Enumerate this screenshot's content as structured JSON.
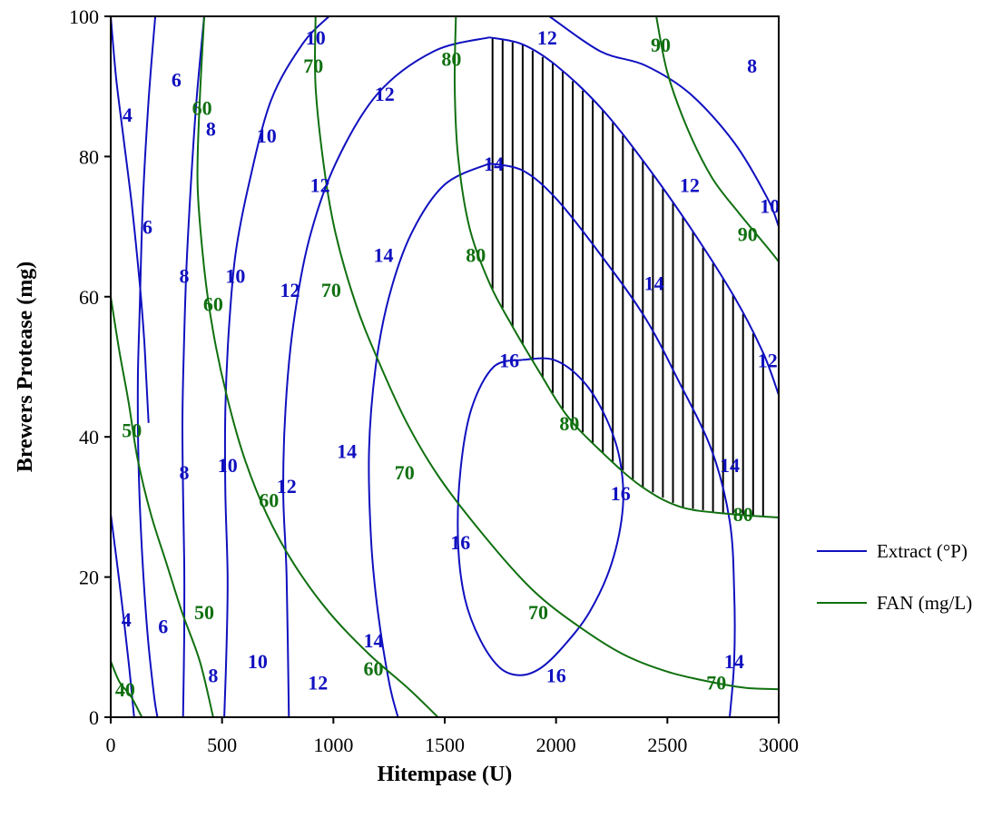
{
  "chart_data": {
    "type": "contour",
    "xlabel": "Hitempase (U)",
    "ylabel": "Brewers Protease (mg)",
    "xlim": [
      0,
      3000
    ],
    "ylim": [
      0,
      100
    ],
    "x_ticks": [
      "0",
      "500",
      "1000",
      "1500",
      "2000",
      "2500",
      "3000"
    ],
    "y_ticks": [
      "0",
      "20",
      "40",
      "60",
      "80",
      "100"
    ],
    "legend_position": "right",
    "shaded_region": "optimum region where Extract >= 12 and FAN >= 80 (hatched)",
    "series": [
      {
        "name": "Extract (°P)",
        "color": "#1010c0",
        "levels": [
          {
            "level": 4,
            "lines": [
              [
                [
                  0,
                  29
                ],
                [
                  40,
                  19
                ],
                [
                  80,
                  8
                ],
                [
                  105,
                  0
                ]
              ],
              [
                [
                  0,
                  100
                ],
                [
                  25,
                  91
                ],
                [
                  60,
                  82
                ],
                [
                  95,
                  73
                ],
                [
                  130,
                  62
                ],
                [
                  150,
                  54
                ],
                [
                  160,
                  48
                ],
                [
                  170,
                  42
                ]
              ]
            ]
          },
          {
            "level": 6,
            "lines": [
              [
                [
                  200,
                  100
                ],
                [
                  170,
                  88
                ],
                [
                  145,
                  74
                ],
                [
                  130,
                  58
                ],
                [
                  122,
                  48
                ],
                [
                  125,
                  36
                ],
                [
                  140,
                  24
                ],
                [
                  165,
                  12
                ],
                [
                  195,
                  3
                ],
                [
                  210,
                  0
                ]
              ]
            ]
          },
          {
            "level": 8,
            "lines": [
              [
                [
                  420,
                  100
                ],
                [
                  385,
                  88
                ],
                [
                  360,
                  76
                ],
                [
                  340,
                  64
                ],
                [
                  328,
                  52
                ],
                [
                  322,
                  42
                ],
                [
                  325,
                  32
                ],
                [
                  330,
                  22
                ],
                [
                  330,
                  12
                ],
                [
                  325,
                  0
                ]
              ]
            ]
          },
          {
            "level": 10,
            "lines": [
              [
                [
                  980,
                  100
                ],
                [
                  860,
                  96
                ],
                [
                  720,
                  88
                ],
                [
                  620,
                  76
                ],
                [
                  560,
                  66
                ],
                [
                  530,
                  55
                ],
                [
                  515,
                  44
                ],
                [
                  515,
                  32
                ],
                [
                  525,
                  20
                ],
                [
                  520,
                  10
                ],
                [
                  510,
                  0
                ]
              ],
              [
                [
                  1970,
                  100
                ],
                [
                  2200,
                  95
                ],
                [
                  2400,
                  93
                ],
                [
                  2600,
                  89
                ],
                [
                  2800,
                  82
                ],
                [
                  2950,
                  74
                ],
                [
                  3000,
                  70
                ]
              ]
            ]
          },
          {
            "level": 12,
            "lines": [
              [
                [
                  1700,
                  97
                ],
                [
                  1450,
                  95
                ],
                [
                  1200,
                  89
                ],
                [
                  1010,
                  79
                ],
                [
                  890,
                  68
                ],
                [
                  820,
                  56
                ],
                [
                  785,
                  44
                ],
                [
                  775,
                  32
                ],
                [
                  790,
                  20
                ],
                [
                  800,
                  0
                ]
              ],
              [
                [
                  1700,
                  97
                ],
                [
                  1850,
                  96
                ],
                [
                  2000,
                  93
                ],
                [
                  2200,
                  87
                ],
                [
                  2400,
                  79
                ],
                [
                  2600,
                  70
                ],
                [
                  2800,
                  60
                ],
                [
                  2930,
                  52
                ],
                [
                  3000,
                  46
                ]
              ]
            ]
          },
          {
            "level": 14,
            "lines": [
              [
                [
                  1700,
                  79
                ],
                [
                  1500,
                  76
                ],
                [
                  1350,
                  69
                ],
                [
                  1250,
                  60
                ],
                [
                  1190,
                  50
                ],
                [
                  1160,
                  38
                ],
                [
                  1170,
                  25
                ],
                [
                  1200,
                  15
                ],
                [
                  1250,
                  5
                ],
                [
                  1290,
                  0
                ]
              ],
              [
                [
                  1700,
                  79
                ],
                [
                  1850,
                  78
                ],
                [
                  2000,
                  74
                ],
                [
                  2200,
                  66
                ],
                [
                  2400,
                  57
                ],
                [
                  2550,
                  48
                ],
                [
                  2700,
                  38
                ],
                [
                  2780,
                  28
                ],
                [
                  2800,
                  18
                ],
                [
                  2800,
                  8
                ],
                [
                  2780,
                  0
                ]
              ]
            ]
          },
          {
            "level": 16,
            "lines": [
              [
                [
                  1850,
                  51
                ],
                [
                  1720,
                  50
                ],
                [
                  1620,
                  44
                ],
                [
                  1570,
                  35
                ],
                [
                  1560,
                  25
                ],
                [
                  1590,
                  17
                ],
                [
                  1660,
                  11
                ],
                [
                  1750,
                  7
                ],
                [
                  1840,
                  6
                ],
                [
                  1930,
                  7
                ],
                [
                  2030,
                  10
                ],
                [
                  2150,
                  15
                ],
                [
                  2250,
                  22
                ],
                [
                  2300,
                  30
                ],
                [
                  2285,
                  37
                ],
                [
                  2220,
                  43
                ],
                [
                  2120,
                  48
                ],
                [
                  1990,
                  51
                ],
                [
                  1850,
                  51
                ]
              ]
            ]
          }
        ]
      },
      {
        "name": "FAN (mg/L)",
        "color": "#107010",
        "levels": [
          {
            "level": 40,
            "lines": [
              [
                [
                  0,
                  8
                ],
                [
                  40,
                  5
                ],
                [
                  90,
                  3
                ],
                [
                  140,
                  0
                ]
              ]
            ]
          },
          {
            "level": 50,
            "lines": [
              [
                [
                  0,
                  60
                ],
                [
                  40,
                  52
                ],
                [
                  80,
                  45
                ],
                [
                  120,
                  37
                ],
                [
                  180,
                  29
                ],
                [
                  250,
                  22
                ],
                [
                  320,
                  15
                ],
                [
                  400,
                  8
                ],
                [
                  460,
                  0
                ]
              ]
            ]
          },
          {
            "level": 60,
            "lines": [
              [
                [
                  420,
                  100
                ],
                [
                  400,
                  88
                ],
                [
                  390,
                  76
                ],
                [
                  420,
                  64
                ],
                [
                  460,
                  55
                ],
                [
                  520,
                  46
                ],
                [
                  600,
                  37
                ],
                [
                  700,
                  29
                ],
                [
                  820,
                  22
                ],
                [
                  980,
                  15
                ],
                [
                  1160,
                  9
                ],
                [
                  1340,
                  4
                ],
                [
                  1470,
                  0
                ]
              ]
            ]
          },
          {
            "level": 70,
            "lines": [
              [
                [
                  920,
                  100
                ],
                [
                  920,
                  90
                ],
                [
                  960,
                  78
                ],
                [
                  1010,
                  69
                ],
                [
                  1100,
                  59
                ],
                [
                  1200,
                  51
                ],
                [
                  1330,
                  42
                ],
                [
                  1480,
                  34
                ],
                [
                  1700,
                  25
                ],
                [
                  1900,
                  18
                ],
                [
                  2100,
                  13
                ],
                [
                  2300,
                  9
                ],
                [
                  2500,
                  6.5
                ],
                [
                  2700,
                  5
                ],
                [
                  2850,
                  4.2
                ],
                [
                  3000,
                  4
                ]
              ]
            ]
          },
          {
            "level": 80,
            "lines": [
              [
                [
                  1550,
                  100
                ],
                [
                  1545,
                  90
                ],
                [
                  1560,
                  80
                ],
                [
                  1610,
                  70
                ],
                [
                  1700,
                  62
                ],
                [
                  1800,
                  56
                ],
                [
                  1930,
                  49
                ],
                [
                  2050,
                  43
                ],
                [
                  2200,
                  38
                ],
                [
                  2380,
                  33
                ],
                [
                  2560,
                  30
                ],
                [
                  2780,
                  29
                ],
                [
                  3000,
                  28.5
                ]
              ]
            ]
          },
          {
            "level": 90,
            "lines": [
              [
                [
                  2450,
                  100
                ],
                [
                  2500,
                  92
                ],
                [
                  2590,
                  84
                ],
                [
                  2700,
                  77
                ],
                [
                  2820,
                  72
                ],
                [
                  2950,
                  67
                ],
                [
                  3000,
                  65
                ]
              ]
            ]
          }
        ]
      }
    ],
    "label_text": {
      "e4a": "4",
      "e4b": "4",
      "e6a": "6",
      "e6b": "6",
      "e6c": "6",
      "e8a": "8",
      "e8b": "8",
      "e8c": "8",
      "e8d": "8",
      "e8e": "8",
      "e10a": "10",
      "e10b": "10",
      "e10c": "10",
      "e10d": "10",
      "e10e": "10",
      "e10f": "10",
      "e12a": "12",
      "e12b": "12",
      "e12c": "12",
      "e12d": "12",
      "e12e": "12",
      "e12f": "12",
      "e12g": "12",
      "e12h": "12",
      "e14a": "14",
      "e14b": "14",
      "e14c": "14",
      "e14d": "14",
      "e14e": "14",
      "e14f": "14",
      "e14g": "14",
      "e16a": "16",
      "e16b": "16",
      "e16c": "16",
      "e16d": "16",
      "f40": "40",
      "f50a": "50",
      "f50b": "50",
      "f60a": "60",
      "f60b": "60",
      "f60c": "60",
      "f60d": "60",
      "f70a": "70",
      "f70b": "70",
      "f70c": "70",
      "f70d": "70",
      "f70e": "70",
      "f80a": "80",
      "f80b": "80",
      "f80c": "80",
      "f80d": "80",
      "f90a": "90",
      "f90b": "90"
    }
  }
}
